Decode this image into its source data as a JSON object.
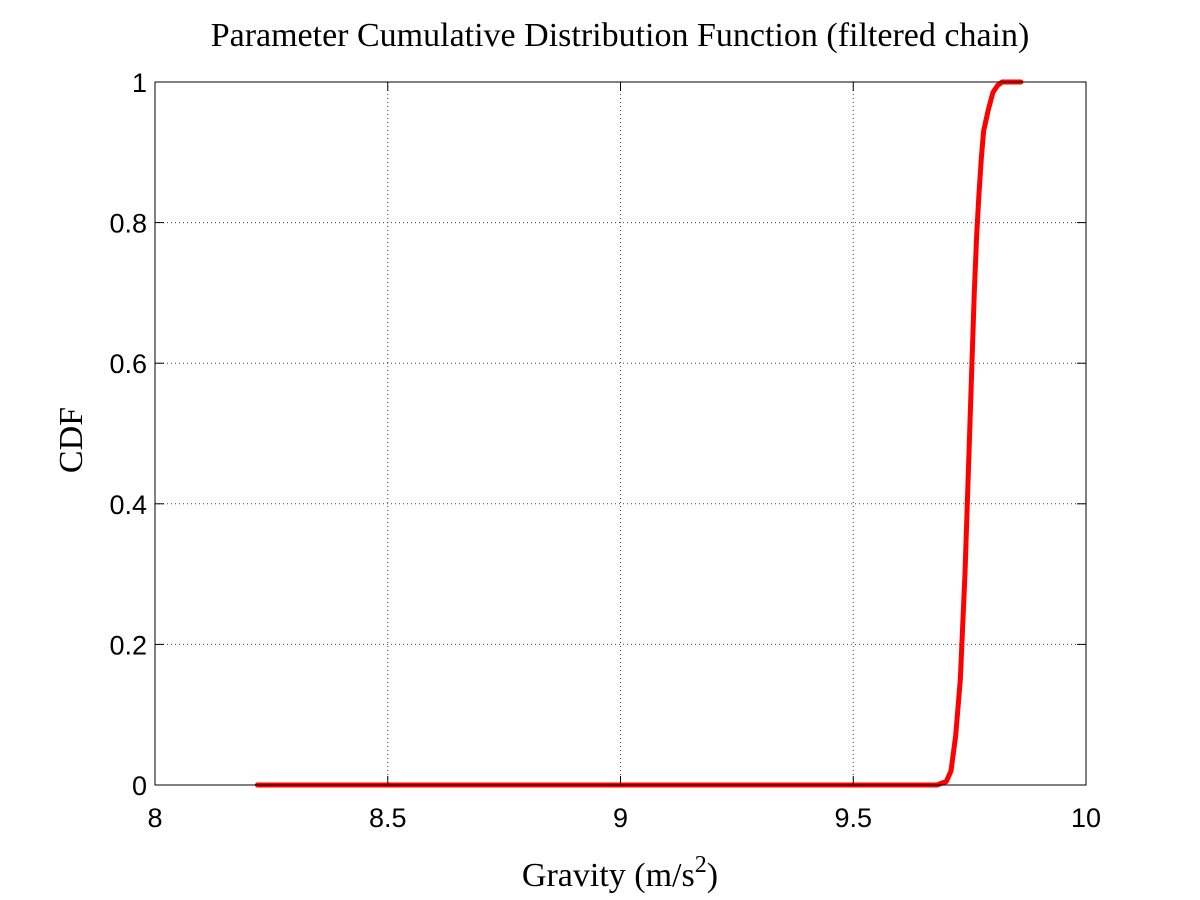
{
  "chart_data": {
    "type": "line",
    "title": "Parameter Cumulative Distribution Function (filtered chain)",
    "xlabel": "Gravity (m/s",
    "xlabel_superscript": "2",
    "xlabel_suffix": ")",
    "ylabel": "CDF",
    "xlim": [
      8,
      10
    ],
    "ylim": [
      0,
      1
    ],
    "xticks": [
      8,
      8.5,
      9,
      9.5,
      10
    ],
    "xtick_labels": [
      "8",
      "8.5",
      "9",
      "9.5",
      "10"
    ],
    "yticks": [
      0,
      0.2,
      0.4,
      0.6,
      0.8,
      1
    ],
    "ytick_labels": [
      "0",
      "0.2",
      "0.4",
      "0.6",
      "0.8",
      "1"
    ],
    "grid": true,
    "series": [
      {
        "color": "#ff0000",
        "x": [
          8.22,
          9.68,
          9.7,
          9.71,
          9.72,
          9.73,
          9.74,
          9.745,
          9.75,
          9.755,
          9.76,
          9.765,
          9.77,
          9.775,
          9.78,
          9.79,
          9.8,
          9.81,
          9.82,
          9.84,
          9.86
        ],
        "y": [
          0.0,
          0.0,
          0.005,
          0.02,
          0.07,
          0.15,
          0.3,
          0.4,
          0.5,
          0.6,
          0.7,
          0.78,
          0.84,
          0.89,
          0.93,
          0.96,
          0.985,
          0.995,
          1.0,
          1.0,
          1.0
        ]
      }
    ]
  }
}
